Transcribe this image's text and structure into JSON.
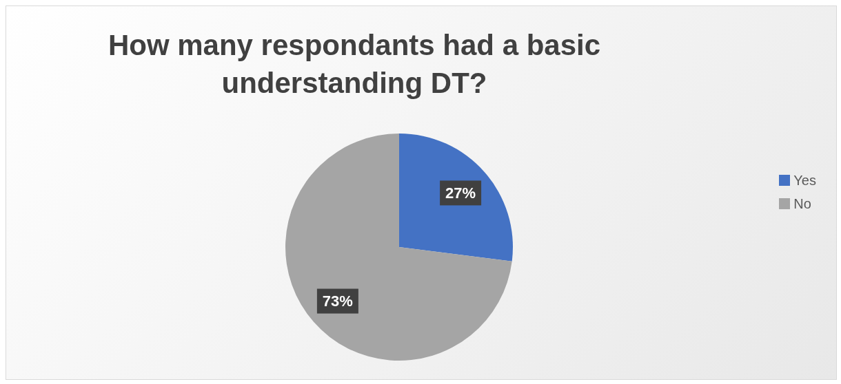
{
  "chart_data": {
    "type": "pie",
    "title": "How many respondants had a basic understanding DT?",
    "categories": [
      "Yes",
      "No"
    ],
    "values": [
      27,
      73
    ],
    "colors": [
      "#4472c4",
      "#a5a5a5"
    ],
    "value_labels": [
      "27%",
      "73%"
    ],
    "legend": "right"
  }
}
